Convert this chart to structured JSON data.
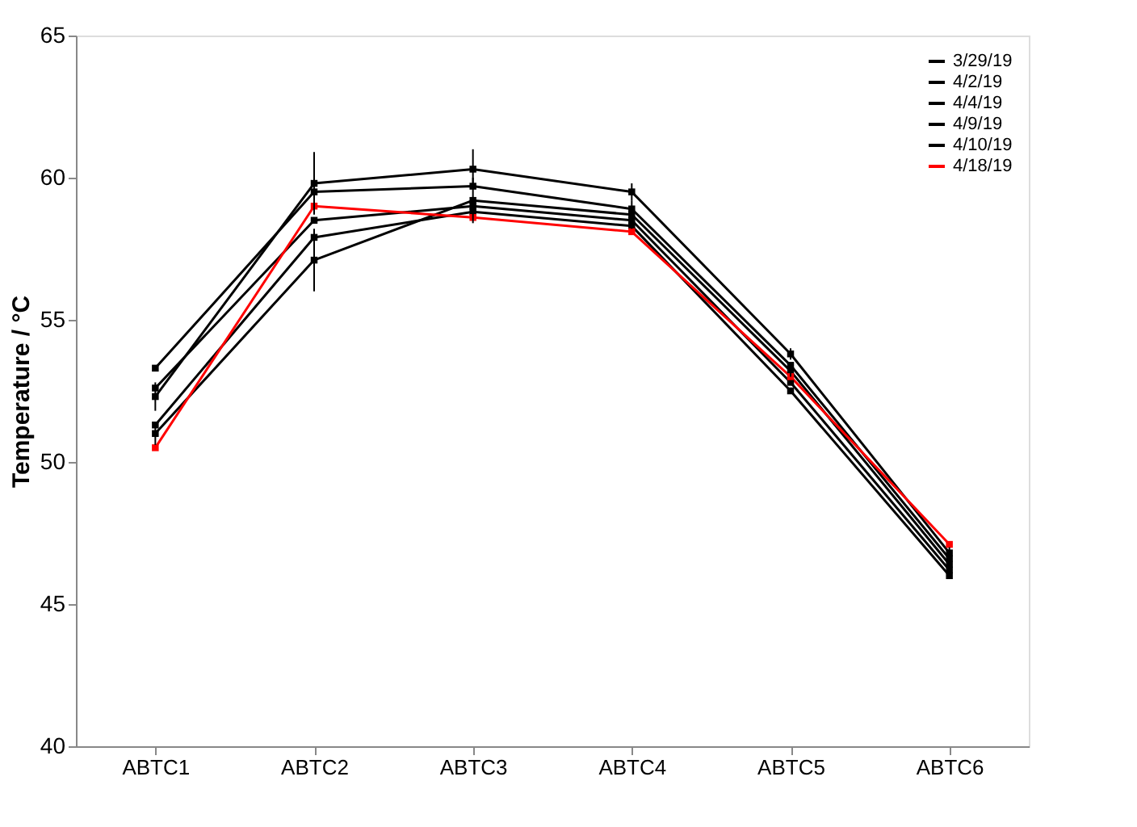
{
  "chart_data": {
    "type": "line",
    "ylabel": "Temperature / °C",
    "categories": [
      "ABTC1",
      "ABTC2",
      "ABTC3",
      "ABTC4",
      "ABTC5",
      "ABTC6"
    ],
    "ylim": [
      40,
      65
    ],
    "yticks": [
      40,
      45,
      50,
      55,
      60,
      65
    ],
    "grid": false,
    "legend": "top right",
    "marker": "square",
    "line_style": "solid",
    "series": [
      {
        "name": "3/29/19",
        "color": "#000000",
        "values": [
          52.3,
          59.8,
          60.3,
          59.5,
          53.8,
          46.8
        ],
        "errors": [
          0.5,
          1.1,
          0.7,
          0.3,
          0.2,
          0.2
        ]
      },
      {
        "name": "4/2/19",
        "color": "#000000",
        "values": [
          53.3,
          59.5,
          59.7,
          58.9,
          53.4,
          46.6
        ]
      },
      {
        "name": "4/4/19",
        "color": "#000000",
        "values": [
          51.0,
          57.1,
          59.2,
          58.7,
          53.2,
          46.4
        ],
        "errors": [
          0.4,
          1.1,
          0.8,
          0.5,
          0.2,
          0.2
        ]
      },
      {
        "name": "4/9/19",
        "color": "#000000",
        "values": [
          52.6,
          58.5,
          59.0,
          58.5,
          52.8,
          46.2
        ]
      },
      {
        "name": "4/10/19",
        "color": "#000000",
        "values": [
          51.3,
          57.9,
          58.8,
          58.3,
          52.5,
          46.0
        ]
      },
      {
        "name": "4/18/19",
        "color": "#ff0000",
        "values": [
          50.5,
          59.0,
          58.6,
          58.1,
          53.0,
          47.1
        ]
      }
    ]
  }
}
